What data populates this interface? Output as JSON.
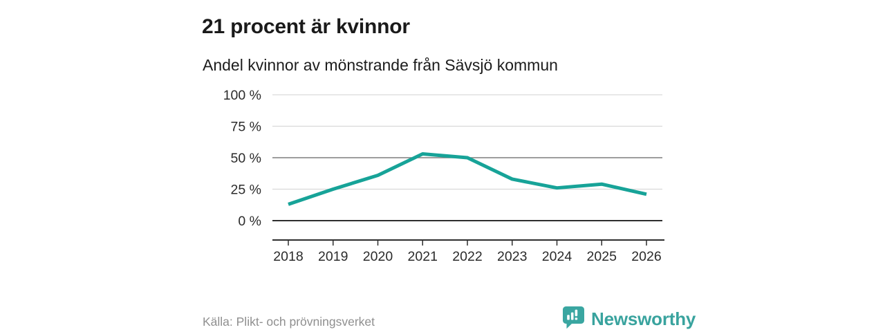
{
  "header": {
    "title": "21 procent är kvinnor",
    "subtitle": "Andel kvinnor av mönstrande från Sävsjö kommun"
  },
  "chart_data": {
    "type": "line",
    "title": "21 procent är kvinnor",
    "subtitle": "Andel kvinnor av mönstrande från Sävsjö kommun",
    "categories": [
      "2018",
      "2019",
      "2020",
      "2021",
      "2022",
      "2023",
      "2024",
      "2025",
      "2026"
    ],
    "series": [
      {
        "name": "Andel kvinnor av mönstrande",
        "values": [
          13,
          25,
          36,
          53,
          50,
          33,
          26,
          29,
          21
        ]
      }
    ],
    "unit": "%",
    "ylim": [
      0,
      100
    ],
    "yticks": [
      0,
      25,
      50,
      75,
      100
    ],
    "ytick_labels": [
      "0 %",
      "25 %",
      "50 %",
      "75 %",
      "100 %"
    ],
    "grid": true,
    "legend": "none"
  },
  "footer": {
    "source": "Källa: Plikt- och prövningsverket",
    "brand": {
      "name": "Newsworthy",
      "logo_icon": "speech-bubble-bar-chart-icon"
    }
  },
  "colors": {
    "line": "#17a398",
    "grid_light": "#d9d9d9",
    "grid_mid": "#7d7d7d",
    "axis": "#2e2e2e",
    "tick_text": "#2b2b2b",
    "brand_teal": "#3aa6a1",
    "muted_text": "#8f8f8f"
  }
}
